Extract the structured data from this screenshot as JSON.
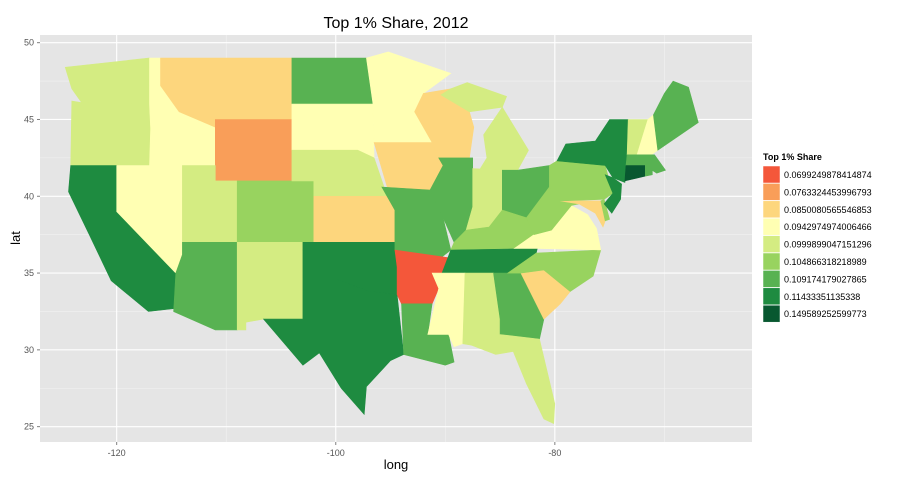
{
  "chart_data": {
    "type": "choropleth",
    "title": "Top 1% Share, 2012",
    "xlabel": "long",
    "ylabel": "lat",
    "x_ticks": [
      -120,
      -100,
      -80
    ],
    "y_ticks": [
      25,
      30,
      35,
      40,
      45,
      50
    ],
    "xlim": [
      -127,
      -62
    ],
    "ylim": [
      24,
      50.5
    ],
    "grid": true,
    "legend": {
      "title": "Top 1% Share",
      "position": "right",
      "bins": [
        {
          "label": "0.0699249878414874",
          "color": "#f4573a"
        },
        {
          "label": "0.0763324453996793",
          "color": "#f99e59"
        },
        {
          "label": "0.0850080565546853",
          "color": "#fdd67d"
        },
        {
          "label": "0.0942974974006466",
          "color": "#ffffb3"
        },
        {
          "label": "0.0999899047151296",
          "color": "#d4ec82"
        },
        {
          "label": "0.104866318218989",
          "color": "#98d35f"
        },
        {
          "label": "0.109174179027865",
          "color": "#58b252"
        },
        {
          "label": "0.11433351135338",
          "color": "#1e8b40"
        },
        {
          "label": "0.149589252599773",
          "color": "#085830"
        }
      ]
    },
    "states": [
      {
        "state": "Washington",
        "bin": 4,
        "lon": [
          -124.7,
          -117.0,
          -117.0,
          -123.2,
          -124.1
        ],
        "lat": [
          48.4,
          49.0,
          46.0,
          46.1,
          47.0
        ]
      },
      {
        "state": "Oregon",
        "bin": 4,
        "lon": [
          -124.1,
          -123.2,
          -117.0,
          -116.9,
          -117.0,
          -124.2
        ],
        "lat": [
          46.2,
          46.1,
          46.0,
          44.4,
          42.0,
          42.0
        ]
      },
      {
        "state": "California",
        "bin": 7,
        "lon": [
          -124.2,
          -120.0,
          -120.0,
          -114.6,
          -114.6,
          -117.1,
          -120.5,
          -122.5,
          -124.4
        ],
        "lat": [
          42.0,
          42.0,
          39.0,
          35.0,
          32.7,
          32.5,
          34.5,
          37.5,
          40.3
        ]
      },
      {
        "state": "Nevada",
        "bin": 3,
        "lon": [
          -120.0,
          -114.0,
          -114.0,
          -114.6,
          -120.0
        ],
        "lat": [
          42.0,
          42.0,
          36.2,
          35.0,
          39.0
        ]
      },
      {
        "state": "Idaho",
        "bin": 3,
        "lon": [
          -117.0,
          -116.0,
          -116.0,
          -114.3,
          -111.0,
          -111.0,
          -117.0,
          -116.9,
          -117.0
        ],
        "lat": [
          49.0,
          49.0,
          47.2,
          45.5,
          44.5,
          42.0,
          42.0,
          44.4,
          46.0
        ]
      },
      {
        "state": "Montana",
        "bin": 2,
        "lon": [
          -116.0,
          -104.0,
          -104.0,
          -111.0,
          -111.0,
          -114.3,
          -116.0
        ],
        "lat": [
          49.0,
          49.0,
          45.0,
          45.0,
          44.5,
          45.5,
          47.2
        ]
      },
      {
        "state": "Wyoming",
        "bin": 1,
        "lon": [
          -111.0,
          -104.0,
          -104.0,
          -111.0
        ],
        "lat": [
          45.0,
          45.0,
          41.0,
          41.0
        ]
      },
      {
        "state": "Utah",
        "bin": 4,
        "lon": [
          -114.0,
          -111.0,
          -111.0,
          -109.0,
          -109.0,
          -114.0
        ],
        "lat": [
          42.0,
          42.0,
          41.0,
          41.0,
          37.0,
          37.0
        ]
      },
      {
        "state": "Colorado",
        "bin": 5,
        "lon": [
          -109.0,
          -102.0,
          -102.0,
          -109.0
        ],
        "lat": [
          41.0,
          41.0,
          37.0,
          37.0
        ]
      },
      {
        "state": "Arizona",
        "bin": 6,
        "lon": [
          -114.0,
          -109.0,
          -109.0,
          -111.0,
          -114.8,
          -114.6,
          -114.0
        ],
        "lat": [
          37.0,
          37.0,
          31.3,
          31.3,
          32.5,
          35.0,
          36.2
        ]
      },
      {
        "state": "New Mexico",
        "bin": 4,
        "lon": [
          -109.0,
          -103.0,
          -103.0,
          -106.6,
          -108.2,
          -108.2,
          -109.0
        ],
        "lat": [
          37.0,
          37.0,
          32.0,
          32.0,
          31.8,
          31.3,
          31.3
        ]
      },
      {
        "state": "North Dakota",
        "bin": 6,
        "lon": [
          -104.0,
          -97.2,
          -96.6,
          -104.0
        ],
        "lat": [
          49.0,
          49.0,
          46.0,
          46.0
        ]
      },
      {
        "state": "South Dakota",
        "bin": 3,
        "lon": [
          -104.0,
          -96.6,
          -96.5,
          -98.0,
          -104.0
        ],
        "lat": [
          46.0,
          46.0,
          42.5,
          43.0,
          43.0
        ]
      },
      {
        "state": "Nebraska",
        "bin": 4,
        "lon": [
          -104.0,
          -98.0,
          -96.5,
          -95.3,
          -95.3,
          -102.0,
          -102.0,
          -104.0
        ],
        "lat": [
          43.0,
          43.0,
          42.5,
          40.0,
          40.0,
          40.0,
          41.0,
          41.0
        ]
      },
      {
        "state": "Kansas",
        "bin": 2,
        "lon": [
          -102.0,
          -95.3,
          -94.6,
          -94.6,
          -102.0
        ],
        "lat": [
          40.0,
          40.0,
          39.1,
          37.0,
          37.0
        ]
      },
      {
        "state": "Oklahoma",
        "bin": 7,
        "lon": [
          -103.0,
          -94.6,
          -94.4,
          -94.4,
          -97.0,
          -100.0,
          -100.0,
          -103.0
        ],
        "lat": [
          37.0,
          37.0,
          35.4,
          33.6,
          33.8,
          34.6,
          36.5,
          36.5
        ]
      },
      {
        "state": "Texas",
        "bin": 7,
        "lon": [
          -103.0,
          -100.0,
          -100.0,
          -97.0,
          -94.4,
          -94.0,
          -93.8,
          -95.0,
          -97.2,
          -97.4,
          -99.5,
          -101.5,
          -103.0,
          -106.6,
          -103.0
        ],
        "lat": [
          36.5,
          36.5,
          34.6,
          33.8,
          33.6,
          31.0,
          29.7,
          29.3,
          27.6,
          25.8,
          27.5,
          29.8,
          29.0,
          32.0,
          32.0
        ]
      },
      {
        "state": "Minnesota",
        "bin": 3,
        "lon": [
          -97.2,
          -95.2,
          -89.5,
          -92.0,
          -92.8,
          -91.2,
          -96.5,
          -96.6
        ],
        "lat": [
          49.0,
          49.4,
          48.0,
          46.7,
          45.5,
          43.5,
          43.5,
          46.0
        ]
      },
      {
        "state": "Iowa",
        "bin": 2,
        "lon": [
          -96.5,
          -91.2,
          -90.2,
          -91.4,
          -95.3
        ],
        "lat": [
          43.5,
          43.5,
          42.0,
          40.4,
          40.6
        ]
      },
      {
        "state": "Missouri",
        "bin": 6,
        "lon": [
          -95.8,
          -91.4,
          -90.2,
          -89.5,
          -90.4,
          -94.6,
          -94.6
        ],
        "lat": [
          40.6,
          40.4,
          38.6,
          36.5,
          36.0,
          36.5,
          39.1
        ]
      },
      {
        "state": "Arkansas",
        "bin": 0,
        "lon": [
          -94.6,
          -89.7,
          -90.6,
          -91.2,
          -94.0,
          -94.4,
          -94.4
        ],
        "lat": [
          36.5,
          36.0,
          34.0,
          33.0,
          33.0,
          33.6,
          35.4
        ]
      },
      {
        "state": "Louisiana",
        "bin": 6,
        "lon": [
          -94.0,
          -91.2,
          -91.6,
          -89.7,
          -89.2,
          -90.0,
          -93.8
        ],
        "lat": [
          33.0,
          33.0,
          31.0,
          31.0,
          29.2,
          29.0,
          29.7
        ]
      },
      {
        "state": "Wisconsin",
        "bin": 2,
        "lon": [
          -92.0,
          -89.5,
          -87.8,
          -87.4,
          -87.8,
          -90.6,
          -91.2,
          -92.8
        ],
        "lat": [
          46.7,
          47.0,
          45.5,
          44.5,
          42.5,
          42.5,
          43.5,
          45.5
        ]
      },
      {
        "state": "Illinois",
        "bin": 6,
        "lon": [
          -90.6,
          -87.5,
          -87.5,
          -88.1,
          -89.2,
          -90.2,
          -91.4,
          -90.2
        ],
        "lat": [
          42.5,
          42.5,
          39.3,
          37.8,
          37.0,
          38.6,
          40.4,
          42.0
        ]
      },
      {
        "state": "Michigan",
        "bin": 4,
        "lon": [
          -86.8,
          -84.8,
          -83.4,
          -82.4,
          -84.8,
          -86.5,
          -86.2
        ],
        "lat": [
          41.8,
          41.7,
          41.7,
          43.0,
          45.8,
          44.0,
          42.5
        ]
      },
      {
        "state": "Michigan UP",
        "bin": 4,
        "lon": [
          -90.4,
          -87.8,
          -84.8,
          -84.4,
          -88.0,
          -89.5
        ],
        "lat": [
          46.6,
          45.5,
          45.8,
          46.5,
          47.4,
          47.0
        ]
      },
      {
        "state": "Indiana",
        "bin": 4,
        "lon": [
          -87.5,
          -84.8,
          -84.8,
          -86.0,
          -88.1,
          -87.5
        ],
        "lat": [
          41.8,
          41.7,
          39.1,
          38.0,
          37.8,
          39.3
        ]
      },
      {
        "state": "Ohio",
        "bin": 6,
        "lon": [
          -84.8,
          -83.4,
          -80.5,
          -80.5,
          -81.7,
          -82.6,
          -84.8
        ],
        "lat": [
          41.7,
          41.7,
          42.0,
          40.6,
          39.2,
          38.6,
          39.1
        ]
      },
      {
        "state": "Kentucky",
        "bin": 5,
        "lon": [
          -89.2,
          -88.1,
          -86.0,
          -84.8,
          -82.6,
          -81.9,
          -83.7,
          -89.5
        ],
        "lat": [
          37.0,
          37.8,
          38.0,
          39.1,
          38.6,
          37.5,
          36.6,
          36.5
        ]
      },
      {
        "state": "Tennessee",
        "bin": 7,
        "lon": [
          -90.3,
          -89.5,
          -81.6,
          -81.7,
          -84.3,
          -88.2,
          -90.1
        ],
        "lat": [
          35.0,
          36.5,
          36.6,
          36.3,
          35.0,
          35.0,
          35.0
        ]
      },
      {
        "state": "Mississippi",
        "bin": 3,
        "lon": [
          -91.2,
          -88.2,
          -88.4,
          -89.2,
          -89.7,
          -91.6,
          -90.6
        ],
        "lat": [
          35.0,
          35.0,
          30.4,
          30.2,
          31.0,
          31.0,
          34.0
        ]
      },
      {
        "state": "Alabama",
        "bin": 4,
        "lon": [
          -88.2,
          -85.6,
          -85.0,
          -85.0,
          -87.6,
          -88.4
        ],
        "lat": [
          35.0,
          35.0,
          32.0,
          31.0,
          30.3,
          30.4
        ]
      },
      {
        "state": "Georgia",
        "bin": 6,
        "lon": [
          -85.6,
          -83.1,
          -81.0,
          -81.4,
          -85.0,
          -85.0
        ],
        "lat": [
          35.0,
          35.0,
          32.0,
          30.7,
          30.9,
          32.0
        ]
      },
      {
        "state": "Florida",
        "bin": 4,
        "lon": [
          -87.6,
          -85.0,
          -81.4,
          -80.0,
          -80.1,
          -81.0,
          -82.6,
          -83.8,
          -85.4,
          -87.6
        ],
        "lat": [
          30.3,
          31.0,
          30.7,
          26.5,
          25.2,
          25.5,
          27.8,
          29.9,
          29.7,
          30.3
        ]
      },
      {
        "state": "South Carolina",
        "bin": 2,
        "lon": [
          -83.1,
          -81.0,
          -78.6,
          -79.5,
          -81.0
        ],
        "lat": [
          35.0,
          35.2,
          33.8,
          33.0,
          32.0
        ]
      },
      {
        "state": "North Carolina",
        "bin": 5,
        "lon": [
          -84.3,
          -81.7,
          -75.8,
          -76.5,
          -78.6,
          -81.0,
          -83.1
        ],
        "lat": [
          35.0,
          36.3,
          36.5,
          34.8,
          33.8,
          35.2,
          35.0
        ]
      },
      {
        "state": "Virginia",
        "bin": 3,
        "lon": [
          -83.7,
          -81.9,
          -80.3,
          -78.5,
          -77.0,
          -76.2,
          -75.8,
          -81.6
        ],
        "lat": [
          36.6,
          37.5,
          37.8,
          39.4,
          38.8,
          37.9,
          36.5,
          36.6
        ]
      },
      {
        "state": "West Virginia",
        "bin": 5,
        "lon": [
          -82.6,
          -80.5,
          -79.5,
          -77.8,
          -78.5,
          -80.3,
          -81.9
        ],
        "lat": [
          38.6,
          40.6,
          39.7,
          39.5,
          39.4,
          37.8,
          37.5
        ]
      },
      {
        "state": "Maryland",
        "bin": 2,
        "lon": [
          -79.5,
          -75.8,
          -75.4,
          -75.6,
          -76.3,
          -77.8
        ],
        "lat": [
          39.7,
          39.7,
          38.4,
          38.0,
          38.9,
          39.5
        ]
      },
      {
        "state": "Delaware",
        "bin": 5,
        "lon": [
          -75.8,
          -75.5,
          -75.0,
          -75.4
        ],
        "lat": [
          39.7,
          39.8,
          38.5,
          38.4
        ]
      },
      {
        "state": "Pennsylvania",
        "bin": 5,
        "lon": [
          -80.5,
          -79.8,
          -75.4,
          -74.7,
          -75.5,
          -79.5,
          -80.5
        ],
        "lat": [
          42.0,
          42.3,
          42.0,
          40.2,
          39.8,
          39.7,
          40.6
        ]
      },
      {
        "state": "New Jersey",
        "bin": 7,
        "lon": [
          -75.4,
          -74.7,
          -73.9,
          -74.0,
          -74.8,
          -75.5,
          -74.7
        ],
        "lat": [
          41.4,
          41.2,
          40.8,
          39.8,
          38.9,
          39.5,
          40.2
        ]
      },
      {
        "state": "New York",
        "bin": 7,
        "lon": [
          -79.8,
          -79.0,
          -76.3,
          -75.0,
          -73.3,
          -73.4,
          -73.6,
          -74.7,
          -75.4
        ],
        "lat": [
          42.3,
          43.4,
          43.6,
          45.0,
          45.0,
          42.0,
          40.9,
          41.2,
          42.0
        ]
      },
      {
        "state": "Vermont",
        "bin": 4,
        "lon": [
          -73.3,
          -71.5,
          -72.5,
          -73.4
        ],
        "lat": [
          45.0,
          45.0,
          42.7,
          42.7
        ]
      },
      {
        "state": "New Hampshire",
        "bin": 3,
        "lon": [
          -71.5,
          -71.0,
          -70.6,
          -71.2,
          -72.5
        ],
        "lat": [
          45.0,
          45.3,
          43.0,
          42.7,
          42.7
        ]
      },
      {
        "state": "Maine",
        "bin": 6,
        "lon": [
          -71.0,
          -70.0,
          -69.2,
          -67.8,
          -66.9,
          -70.6
        ],
        "lat": [
          45.3,
          46.7,
          47.5,
          47.1,
          44.8,
          43.0
        ]
      },
      {
        "state": "Massachusetts",
        "bin": 6,
        "lon": [
          -73.4,
          -70.9,
          -69.9,
          -70.7,
          -71.8,
          -73.5
        ],
        "lat": [
          42.7,
          42.7,
          41.7,
          41.5,
          42.0,
          42.0
        ]
      },
      {
        "state": "Rhode Island",
        "bin": 6,
        "lon": [
          -71.8,
          -71.1,
          -71.1,
          -71.8
        ],
        "lat": [
          42.0,
          42.0,
          41.4,
          41.3
        ]
      },
      {
        "state": "Connecticut",
        "bin": 8,
        "lon": [
          -73.5,
          -71.8,
          -71.8,
          -73.6
        ],
        "lat": [
          42.0,
          42.0,
          41.3,
          41.0
        ]
      }
    ]
  }
}
